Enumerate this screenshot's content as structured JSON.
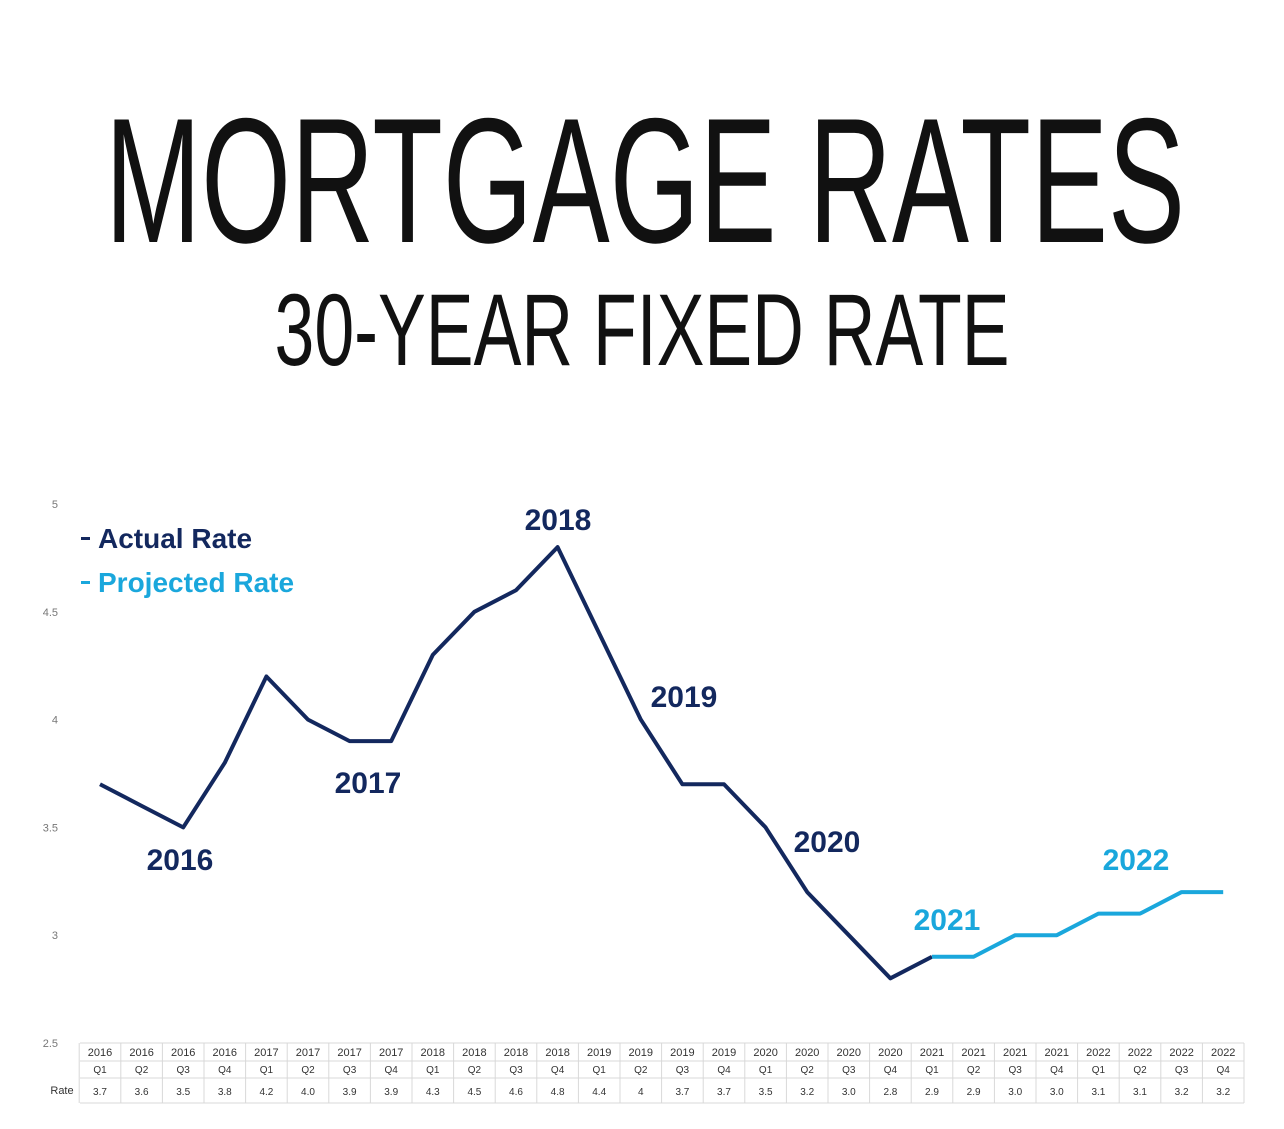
{
  "chart_data": {
    "type": "line",
    "title": "MORTGAGE RATES",
    "subtitle": "30-YEAR FIXED RATE",
    "categories": [
      [
        "2016",
        "Q1"
      ],
      [
        "2016",
        "Q2"
      ],
      [
        "2016",
        "Q3"
      ],
      [
        "2016",
        "Q4"
      ],
      [
        "2017",
        "Q1"
      ],
      [
        "2017",
        "Q2"
      ],
      [
        "2017",
        "Q3"
      ],
      [
        "2017",
        "Q4"
      ],
      [
        "2018",
        "Q1"
      ],
      [
        "2018",
        "Q2"
      ],
      [
        "2018",
        "Q3"
      ],
      [
        "2018",
        "Q4"
      ],
      [
        "2019",
        "Q1"
      ],
      [
        "2019",
        "Q2"
      ],
      [
        "2019",
        "Q3"
      ],
      [
        "2019",
        "Q4"
      ],
      [
        "2020",
        "Q1"
      ],
      [
        "2020",
        "Q2"
      ],
      [
        "2020",
        "Q3"
      ],
      [
        "2020",
        "Q4"
      ],
      [
        "2021",
        "Q1"
      ],
      [
        "2021",
        "Q2"
      ],
      [
        "2021",
        "Q3"
      ],
      [
        "2021",
        "Q4"
      ],
      [
        "2022",
        "Q1"
      ],
      [
        "2022",
        "Q2"
      ],
      [
        "2022",
        "Q3"
      ],
      [
        "2022",
        "Q4"
      ]
    ],
    "row_label": "Rate",
    "series": [
      {
        "name": "Actual Rate",
        "color": "#13285e",
        "values": [
          3.7,
          3.6,
          3.5,
          3.8,
          4.2,
          4.0,
          3.9,
          3.9,
          4.3,
          4.5,
          4.6,
          4.8,
          4.4,
          4,
          3.7,
          3.7,
          3.5,
          3.2,
          3.0,
          2.8,
          2.9,
          null,
          null,
          null,
          null,
          null,
          null,
          null
        ],
        "value_labels": [
          "3.7",
          "3.6",
          "3.5",
          "3.8",
          "4.2",
          "4.0",
          "3.9",
          "3.9",
          "4.3",
          "4.5",
          "4.6",
          "4.8",
          "4.4",
          "4",
          "3.7",
          "3.7",
          "3.5",
          "3.2",
          "3.0",
          "2.8",
          "2.9",
          null,
          null,
          null,
          null,
          null,
          null,
          null
        ]
      },
      {
        "name": "Projected Rate",
        "color": "#1aa7dc",
        "values": [
          null,
          null,
          null,
          null,
          null,
          null,
          null,
          null,
          null,
          null,
          null,
          null,
          null,
          null,
          null,
          null,
          null,
          null,
          null,
          null,
          2.9,
          2.9,
          3.0,
          3.0,
          3.1,
          3.1,
          3.2,
          3.2
        ],
        "value_labels": [
          null,
          null,
          null,
          null,
          null,
          null,
          null,
          null,
          null,
          null,
          null,
          null,
          null,
          null,
          null,
          null,
          null,
          null,
          null,
          null,
          null,
          "2.9",
          "3.0",
          "3.0",
          "3.1",
          "3.1",
          "3.2",
          "3.2"
        ]
      }
    ],
    "annotations": [
      {
        "text": "2016",
        "color": "#13285e"
      },
      {
        "text": "2017",
        "color": "#13285e"
      },
      {
        "text": "2018",
        "color": "#13285e"
      },
      {
        "text": "2019",
        "color": "#13285e"
      },
      {
        "text": "2020",
        "color": "#13285e"
      },
      {
        "text": "2021",
        "color": "#1aa7dc"
      },
      {
        "text": "2022",
        "color": "#1aa7dc"
      }
    ],
    "ylim": [
      2.5,
      5
    ],
    "yticks": [
      2.5,
      3,
      3.5,
      4,
      4.5,
      5
    ],
    "grid": false
  }
}
